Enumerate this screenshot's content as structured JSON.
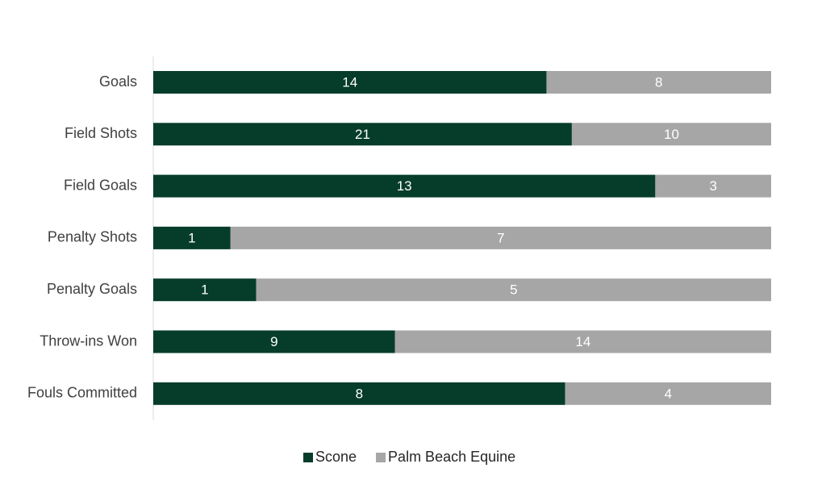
{
  "chart_data": {
    "type": "bar",
    "orientation": "horizontal",
    "stacking": "percent",
    "categories": [
      "Goals",
      "Field Shots",
      "Field Goals",
      "Penalty Shots",
      "Penalty Goals",
      "Throw-ins Won",
      "Fouls Committed"
    ],
    "series": [
      {
        "name": "Scone",
        "color": "#063d2a",
        "values": [
          14,
          21,
          13,
          1,
          1,
          9,
          8
        ]
      },
      {
        "name": "Palm Beach Equine",
        "color": "#a6a6a6",
        "values": [
          8,
          10,
          3,
          7,
          5,
          14,
          4
        ]
      }
    ],
    "legend": "bottom"
  }
}
